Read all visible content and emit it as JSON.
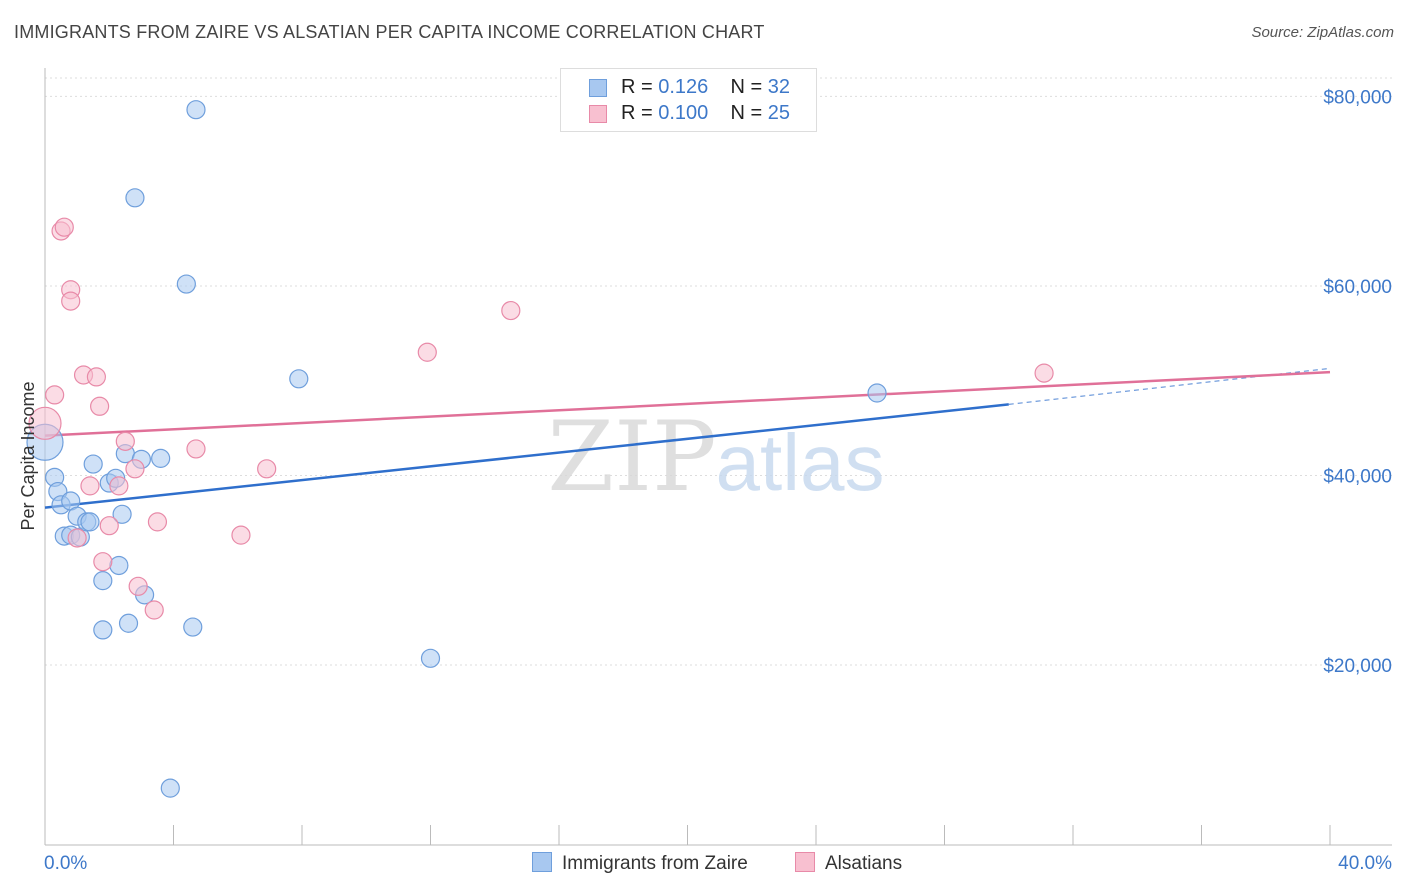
{
  "title": "IMMIGRANTS FROM ZAIRE VS ALSATIAN PER CAPITA INCOME CORRELATION CHART",
  "source": "Source: ZipAtlas.com",
  "watermark": {
    "zip": "ZIP",
    "atlas": "atlas"
  },
  "legend": {
    "rows": [
      {
        "r_label": "R =",
        "r_value": "0.126",
        "n_label": "N =",
        "n_value": "32",
        "color": "#a8c8f0",
        "border": "#6f9fdc"
      },
      {
        "r_label": "R =",
        "r_value": "0.100",
        "n_label": "N =",
        "n_value": "25",
        "color": "#f8c0d0",
        "border": "#e88aa8"
      }
    ]
  },
  "chart_data": {
    "type": "scatter",
    "title": "IMMIGRANTS FROM ZAIRE VS ALSATIAN PER CAPITA INCOME CORRELATION CHART",
    "xlabel": "",
    "ylabel": "Per Capita Income",
    "xlim": [
      0,
      40
    ],
    "ylim": [
      1000,
      83000
    ],
    "x_tick_labels": [
      "0.0%",
      "40.0%"
    ],
    "y_ticks": [
      20000,
      40000,
      60000,
      80000
    ],
    "y_tick_labels": [
      "$20,000",
      "$40,000",
      "$60,000",
      "$80,000"
    ],
    "grid": true,
    "legend_position": "top-center",
    "series": [
      {
        "name": "Immigrants from Zaire",
        "color": "#a8c8f0",
        "stroke": "#6f9fdc",
        "line_color": "#2f6fcc",
        "points": [
          [
            0.0,
            43500,
            18
          ],
          [
            0.3,
            39800,
            9
          ],
          [
            0.4,
            38300,
            9
          ],
          [
            0.5,
            36900,
            9
          ],
          [
            0.8,
            37300,
            9
          ],
          [
            0.6,
            33600,
            9
          ],
          [
            0.8,
            33700,
            9
          ],
          [
            1.0,
            35700,
            9
          ],
          [
            1.1,
            33500,
            9
          ],
          [
            1.3,
            35100,
            9
          ],
          [
            1.4,
            35100,
            9
          ],
          [
            1.5,
            41200,
            9
          ],
          [
            1.8,
            28900,
            9
          ],
          [
            1.8,
            23700,
            9
          ],
          [
            2.0,
            39200,
            9
          ],
          [
            2.2,
            39700,
            9
          ],
          [
            2.3,
            30500,
            9
          ],
          [
            2.4,
            35900,
            9
          ],
          [
            2.5,
            42300,
            9
          ],
          [
            2.6,
            24400,
            9
          ],
          [
            2.8,
            69300,
            9
          ],
          [
            3.0,
            41700,
            9
          ],
          [
            3.1,
            27400,
            9
          ],
          [
            3.6,
            41800,
            9
          ],
          [
            3.9,
            7000,
            9
          ],
          [
            4.4,
            60200,
            9
          ],
          [
            4.6,
            24000,
            9
          ],
          [
            4.7,
            78600,
            9
          ],
          [
            7.9,
            50200,
            9
          ],
          [
            12.0,
            20700,
            9
          ],
          [
            25.9,
            48700,
            9
          ],
          [
            30.0,
            48300,
            0
          ]
        ],
        "trend": {
          "x": [
            0,
            30
          ],
          "y": [
            36600,
            47500
          ],
          "dashed_extension_to": [
            40,
            51300
          ]
        }
      },
      {
        "name": "Alsatians",
        "color": "#f8c0d0",
        "stroke": "#e88aa8",
        "line_color": "#e07098",
        "points": [
          [
            0.0,
            45500,
            16
          ],
          [
            0.3,
            48500,
            9
          ],
          [
            0.5,
            65800,
            9
          ],
          [
            0.6,
            66200,
            9
          ],
          [
            0.8,
            59600,
            9
          ],
          [
            0.8,
            58400,
            9
          ],
          [
            1.0,
            33400,
            9
          ],
          [
            1.2,
            50600,
            9
          ],
          [
            1.4,
            38900,
            9
          ],
          [
            1.6,
            50400,
            9
          ],
          [
            1.7,
            47300,
            9
          ],
          [
            1.8,
            30900,
            9
          ],
          [
            2.0,
            34700,
            9
          ],
          [
            2.3,
            38900,
            9
          ],
          [
            2.5,
            43600,
            9
          ],
          [
            2.8,
            40700,
            9
          ],
          [
            2.9,
            28300,
            9
          ],
          [
            3.4,
            25800,
            9
          ],
          [
            3.5,
            35100,
            9
          ],
          [
            4.7,
            42800,
            9
          ],
          [
            6.1,
            33700,
            9
          ],
          [
            6.9,
            40700,
            9
          ],
          [
            11.9,
            53000,
            9
          ],
          [
            14.5,
            57400,
            9
          ],
          [
            31.1,
            50800,
            9
          ]
        ],
        "trend": {
          "x": [
            0,
            40
          ],
          "y": [
            44200,
            50900
          ]
        }
      }
    ]
  }
}
